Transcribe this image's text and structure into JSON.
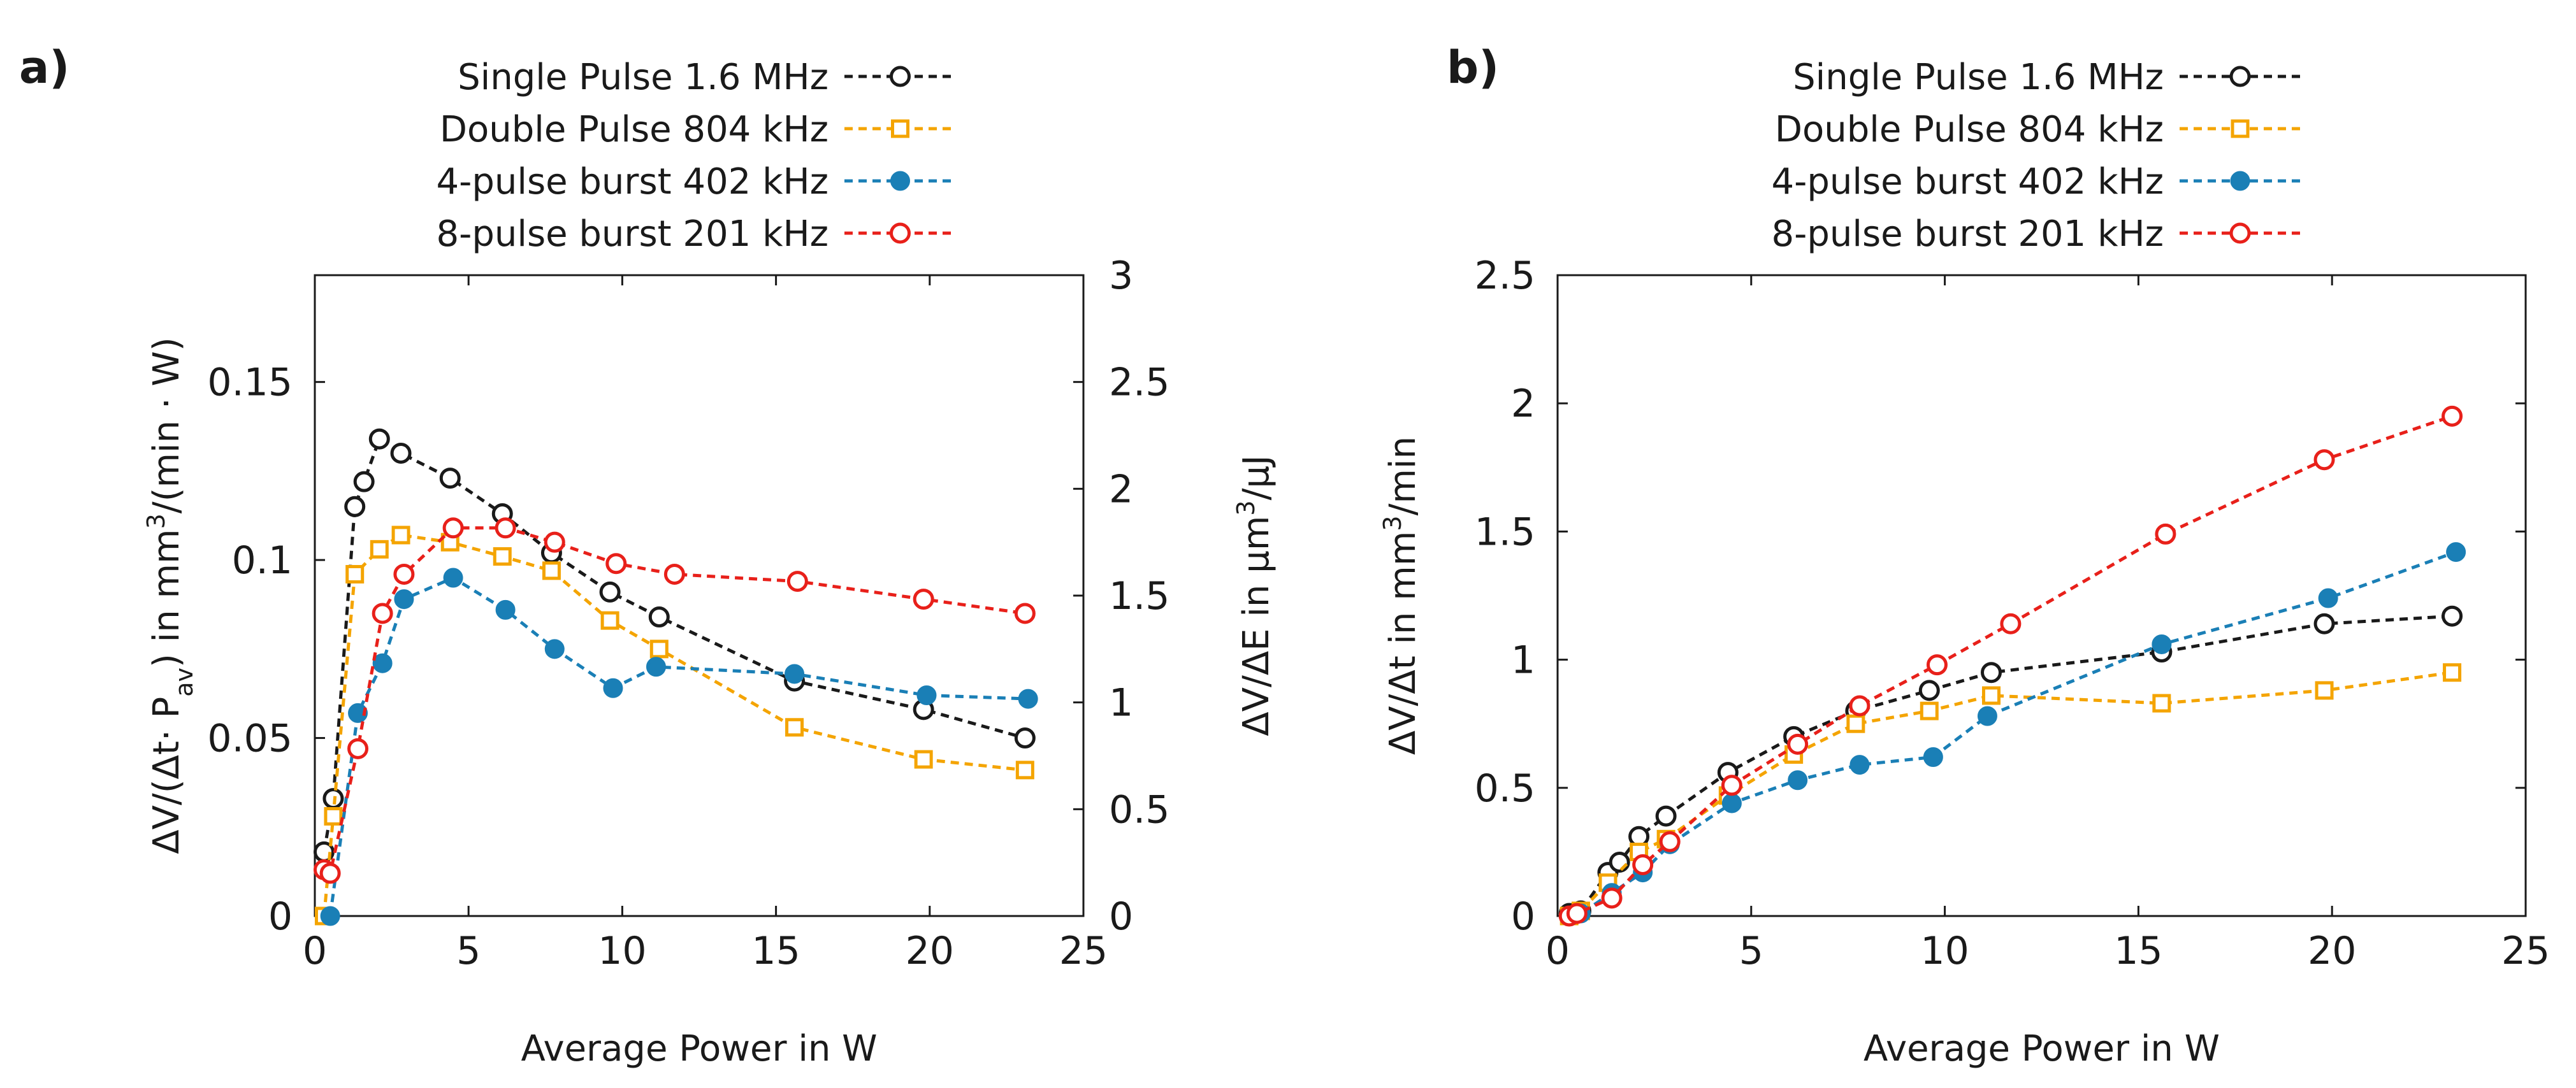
{
  "chart_data": [
    {
      "panel": "a)",
      "type": "line",
      "xlabel": "Average Power in W",
      "ylabel": "ΔV/(Δt· P_av) in mm³/(min · W)",
      "ylabel_parts": [
        "ΔV/(Δt· P",
        "av",
        ") in mm",
        "3",
        "/(min · W)"
      ],
      "y2label": "ΔV/ΔE in μm³/μJ",
      "y2label_parts": [
        "ΔV/ΔE in μm",
        "3",
        "/μJ"
      ],
      "xlim": [
        0,
        25
      ],
      "ylim": [
        0,
        0.18
      ],
      "y2lim": [
        0,
        3
      ],
      "xticks": [
        0,
        5,
        10,
        15,
        20,
        25
      ],
      "xtick_labels": [
        "0",
        "5",
        "10",
        "15",
        "20",
        "25"
      ],
      "yticks": [
        0,
        0.05,
        0.1,
        0.15
      ],
      "ytick_labels": [
        "0",
        "0.05",
        "0.1",
        "0.15"
      ],
      "y2ticks": [
        0,
        0.5,
        1,
        1.5,
        2,
        2.5,
        3
      ],
      "y2tick_labels": [
        "0",
        "0.5",
        "1",
        "1.5",
        "2",
        "2.5",
        "3"
      ],
      "grid": false,
      "legend_position": "top, outside plot",
      "series": [
        {
          "name": "Single Pulse 1.6 MHz",
          "color": "#1a1a1a",
          "marker": "circle-open",
          "x": [
            0.3,
            0.6,
            1.3,
            1.6,
            2.1,
            2.8,
            4.4,
            6.1,
            7.7,
            9.6,
            11.2,
            15.6,
            19.8,
            23.1
          ],
          "y": [
            0.018,
            0.033,
            0.115,
            0.122,
            0.134,
            0.13,
            0.123,
            0.113,
            0.102,
            0.091,
            0.084,
            0.066,
            0.058,
            0.05
          ]
        },
        {
          "name": "Double Pulse 804 kHz",
          "color": "#f4a400",
          "marker": "square-open",
          "x": [
            0.3,
            0.6,
            1.3,
            2.1,
            2.8,
            4.4,
            6.1,
            7.7,
            9.6,
            11.2,
            15.6,
            19.8,
            23.1
          ],
          "y": [
            0.0,
            0.028,
            0.096,
            0.103,
            0.107,
            0.105,
            0.101,
            0.097,
            0.083,
            0.075,
            0.053,
            0.044,
            0.041
          ]
        },
        {
          "name": "4-pulse burst 402 kHz",
          "color": "#1a7fb6",
          "marker": "circle-filled",
          "x": [
            0.5,
            1.4,
            2.2,
            2.9,
            4.5,
            6.2,
            7.8,
            9.7,
            11.1,
            15.6,
            19.9,
            23.2
          ],
          "y": [
            0.0,
            0.057,
            0.071,
            0.089,
            0.095,
            0.086,
            0.075,
            0.064,
            0.07,
            0.068,
            0.062,
            0.061
          ]
        },
        {
          "name": "8-pulse burst 201 kHz",
          "color": "#e8201a",
          "marker": "circle-open",
          "x": [
            0.3,
            0.5,
            1.4,
            2.2,
            2.9,
            4.5,
            6.2,
            7.8,
            9.8,
            11.7,
            15.7,
            19.8,
            23.1
          ],
          "y": [
            0.013,
            0.012,
            0.047,
            0.085,
            0.096,
            0.109,
            0.109,
            0.105,
            0.099,
            0.096,
            0.094,
            0.089,
            0.085
          ]
        }
      ]
    },
    {
      "panel": "b)",
      "type": "line",
      "xlabel": "Average Power in W",
      "ylabel": "ΔV/Δt in mm³/min",
      "ylabel_parts": [
        "ΔV/Δt in mm",
        "3",
        "/min"
      ],
      "xlim": [
        0,
        25
      ],
      "ylim": [
        0,
        2.5
      ],
      "xticks": [
        0,
        5,
        10,
        15,
        20,
        25
      ],
      "xtick_labels": [
        "0",
        "5",
        "10",
        "15",
        "20",
        "25"
      ],
      "yticks": [
        0,
        0.5,
        1,
        1.5,
        2,
        2.5
      ],
      "ytick_labels": [
        "0",
        "0.5",
        "1",
        "1.5",
        "2",
        "2.5"
      ],
      "grid": false,
      "legend_position": "top, outside plot",
      "series": [
        {
          "name": "Single Pulse 1.6 MHz",
          "color": "#1a1a1a",
          "marker": "circle-open",
          "x": [
            0.3,
            0.6,
            1.3,
            1.6,
            2.1,
            2.8,
            4.4,
            6.1,
            7.7,
            9.6,
            11.2,
            15.6,
            19.8,
            23.1
          ],
          "y": [
            0.01,
            0.02,
            0.17,
            0.21,
            0.31,
            0.39,
            0.56,
            0.7,
            0.8,
            0.88,
            0.95,
            1.03,
            1.14,
            1.17
          ]
        },
        {
          "name": "Double Pulse 804 kHz",
          "color": "#f4a400",
          "marker": "square-open",
          "x": [
            0.3,
            0.6,
            1.3,
            2.1,
            2.8,
            4.4,
            6.1,
            7.7,
            9.6,
            11.2,
            15.6,
            19.8,
            23.1
          ],
          "y": [
            0.0,
            0.02,
            0.13,
            0.25,
            0.3,
            0.47,
            0.63,
            0.75,
            0.8,
            0.86,
            0.83,
            0.88,
            0.95
          ]
        },
        {
          "name": "4-pulse burst 402 kHz",
          "color": "#1a7fb6",
          "marker": "circle-filled",
          "x": [
            0.3,
            0.6,
            1.4,
            2.2,
            2.9,
            4.5,
            6.2,
            7.8,
            9.7,
            11.1,
            15.6,
            19.9,
            23.2
          ],
          "y": [
            0.0,
            0.01,
            0.09,
            0.17,
            0.28,
            0.44,
            0.53,
            0.59,
            0.62,
            0.78,
            1.06,
            1.24,
            1.42
          ]
        },
        {
          "name": "8-pulse burst 201 kHz",
          "color": "#e8201a",
          "marker": "circle-open",
          "x": [
            0.3,
            0.5,
            1.4,
            2.2,
            2.9,
            4.5,
            6.2,
            7.8,
            9.8,
            11.7,
            15.7,
            19.8,
            23.1
          ],
          "y": [
            0.0,
            0.01,
            0.07,
            0.2,
            0.29,
            0.51,
            0.67,
            0.82,
            0.98,
            1.14,
            1.49,
            1.78,
            1.95
          ]
        }
      ]
    }
  ]
}
